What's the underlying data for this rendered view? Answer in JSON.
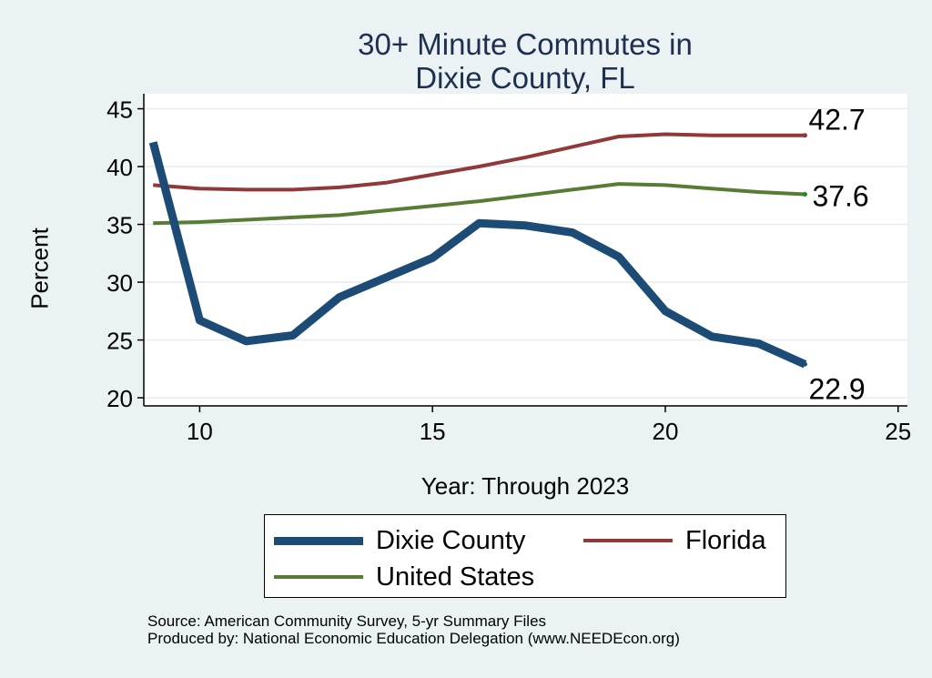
{
  "title_line1": "30+ Minute Commutes in",
  "title_line2": "Dixie County, FL",
  "source_line1": "Source: American Community Survey, 5-yr Summary Files",
  "source_line2": "Produced by: National Economic Education Delegation (www.NEEDEcon.org)",
  "colors": {
    "background": "#eaf2f3",
    "plot_background": "#ffffff",
    "gridline": "#e6ecf0",
    "title": "#1e2f4f",
    "dixie": "#1c4c76",
    "florida": "#913838",
    "us": "#577c34"
  },
  "chart_data": {
    "type": "line",
    "title": "30+ Minute Commutes in Dixie County, FL",
    "xlabel": "Year: Through 2023",
    "ylabel": "Percent",
    "xlim": [
      8.8,
      25.2
    ],
    "ylim": [
      19.3,
      46.3
    ],
    "xticks": [
      10,
      15,
      20,
      25
    ],
    "yticks": [
      20,
      25,
      30,
      35,
      40,
      45
    ],
    "grid": true,
    "legend_position": "bottom",
    "x": [
      9,
      10,
      11,
      12,
      13,
      14,
      15,
      16,
      17,
      18,
      19,
      20,
      21,
      22,
      23
    ],
    "series": [
      {
        "name": "Dixie County",
        "color": "#1c4c76",
        "values": [
          42.1,
          26.7,
          24.9,
          25.4,
          28.7,
          30.4,
          32.1,
          35.1,
          34.9,
          34.3,
          32.2,
          27.5,
          25.3,
          24.7,
          22.9
        ],
        "end_label": "22.9"
      },
      {
        "name": "Florida",
        "color": "#913838",
        "values": [
          38.4,
          38.1,
          38.0,
          38.0,
          38.2,
          38.6,
          39.3,
          40.0,
          40.8,
          41.7,
          42.6,
          42.8,
          42.7,
          42.7,
          42.7
        ],
        "end_label": "42.7"
      },
      {
        "name": "United States",
        "color": "#577c34",
        "values": [
          35.1,
          35.2,
          35.4,
          35.6,
          35.8,
          36.2,
          36.6,
          37.0,
          37.5,
          38.0,
          38.5,
          38.4,
          38.1,
          37.8,
          37.6
        ],
        "end_label": "37.6"
      }
    ]
  }
}
